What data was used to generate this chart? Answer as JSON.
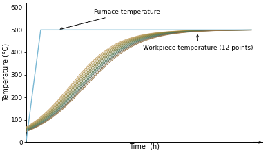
{
  "title": "",
  "xlabel": "Time  (h)",
  "ylabel": "Temperature (°C)",
  "ylim": [
    0,
    620
  ],
  "xlim": [
    0,
    1.05
  ],
  "yticks": [
    0,
    100,
    200,
    300,
    400,
    500,
    600
  ],
  "furnace_color": "#7ab8d4",
  "workpiece_colors": [
    "#c8a870",
    "#b89a5a",
    "#a89048",
    "#98883e",
    "#888040",
    "#7a7a3c",
    "#6a7a48",
    "#5a7a55",
    "#4a7860",
    "#5a6858",
    "#7a6848",
    "#9a7848"
  ],
  "background_color": "#ffffff",
  "furnace_label": "Furnace temperature",
  "workpiece_label": "Workpiece temperature (12 points)"
}
